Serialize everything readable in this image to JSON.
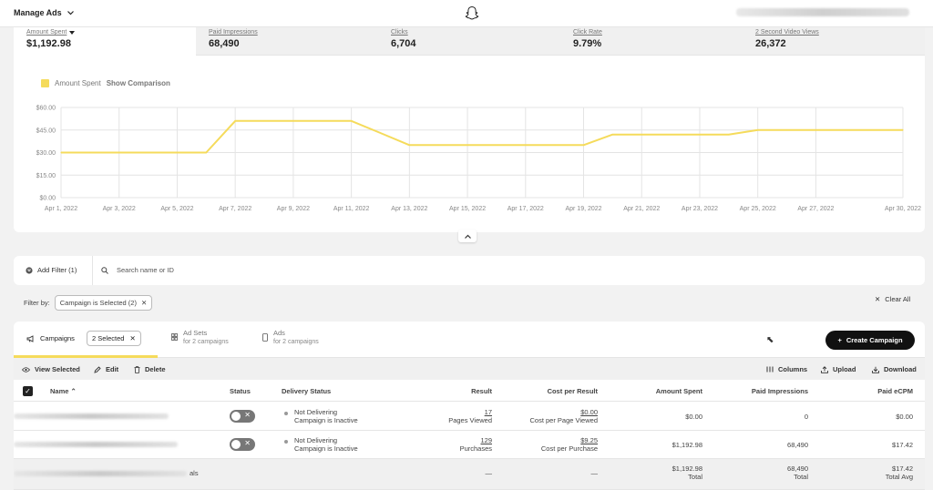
{
  "topbar": {
    "title": "Manage Ads"
  },
  "metrics": [
    {
      "label": "Amount Spent",
      "value": "$1,192.98"
    },
    {
      "label": "Paid Impressions",
      "value": "68,490"
    },
    {
      "label": "Clicks",
      "value": "6,704"
    },
    {
      "label": "Click Rate",
      "value": "9.79%"
    },
    {
      "label": "2 Second Video Views",
      "value": "26,372"
    }
  ],
  "legend": {
    "series": "Amount Spent",
    "compare": "Show Comparison"
  },
  "colors": {
    "series": "#f5db5b",
    "accent": "#111111"
  },
  "chart_data": {
    "type": "line",
    "title": "",
    "xlabel": "",
    "ylabel": "",
    "ylim": [
      0,
      60
    ],
    "yticks": [
      "$60.00",
      "$45.00",
      "$30.00",
      "$15.00",
      "$0.00"
    ],
    "xticks": [
      "Apr 1, 2022",
      "Apr 3, 2022",
      "Apr 5, 2022",
      "Apr 7, 2022",
      "Apr 9, 2022",
      "Apr 11, 2022",
      "Apr 13, 2022",
      "Apr 15, 2022",
      "Apr 17, 2022",
      "Apr 19, 2022",
      "Apr 21, 2022",
      "Apr 23, 2022",
      "Apr 25, 2022",
      "Apr 27, 2022",
      "Apr 30, 2022"
    ],
    "x": [
      "Apr 1, 2022",
      "Apr 2, 2022",
      "Apr 3, 2022",
      "Apr 4, 2022",
      "Apr 5, 2022",
      "Apr 6, 2022",
      "Apr 7, 2022",
      "Apr 8, 2022",
      "Apr 9, 2022",
      "Apr 10, 2022",
      "Apr 11, 2022",
      "Apr 12, 2022",
      "Apr 13, 2022",
      "Apr 14, 2022",
      "Apr 15, 2022",
      "Apr 16, 2022",
      "Apr 17, 2022",
      "Apr 18, 2022",
      "Apr 19, 2022",
      "Apr 20, 2022",
      "Apr 21, 2022",
      "Apr 22, 2022",
      "Apr 23, 2022",
      "Apr 24, 2022",
      "Apr 25, 2022",
      "Apr 26, 2022",
      "Apr 27, 2022",
      "Apr 28, 2022",
      "Apr 29, 2022",
      "Apr 30, 2022"
    ],
    "series": [
      {
        "values": [
          30,
          30,
          30,
          30,
          30,
          30,
          51,
          51,
          51,
          51,
          51,
          43,
          35,
          35,
          35,
          35,
          35,
          35,
          35,
          42,
          42,
          42,
          42,
          42,
          45,
          45,
          45,
          45,
          45,
          45
        ]
      }
    ],
    "grid": true,
    "legend": "top-left"
  },
  "filters": {
    "add_filter": "Add Filter (1)",
    "search_placeholder": "Search name or ID",
    "filter_by": "Filter by:",
    "chip": "Campaign is Selected (2)",
    "clear_all": "Clear All"
  },
  "tabs": {
    "campaigns": "Campaigns",
    "selected_chip": "2 Selected",
    "adsets_title": "Ad Sets",
    "adsets_sub": "for 2 campaigns",
    "ads_title": "Ads",
    "ads_sub": "for 2 campaigns",
    "create": "Create Campaign"
  },
  "actions": {
    "view": "View Selected",
    "edit": "Edit",
    "delete": "Delete",
    "columns": "Columns",
    "upload": "Upload",
    "download": "Download"
  },
  "table": {
    "headers": {
      "name": "Name",
      "status": "Status",
      "delivery": "Delivery Status",
      "result": "Result",
      "cpr": "Cost per Result",
      "spent": "Amount Spent",
      "impr": "Paid Impressions",
      "ecpm": "Paid eCPM"
    },
    "rows": [
      {
        "delivery1": "Not Delivering",
        "delivery2": "Campaign is Inactive",
        "result": "17",
        "result_sub": "Pages Viewed",
        "cpr": "$0.00",
        "cpr_sub": "Cost per Page Viewed",
        "spent": "$0.00",
        "impr": "0",
        "ecpm": "$0.00"
      },
      {
        "delivery1": "Not Delivering",
        "delivery2": "Campaign is Inactive",
        "result": "129",
        "result_sub": "Purchases",
        "cpr": "$9.25",
        "cpr_sub": "Cost per Purchase",
        "spent": "$1,192.98",
        "impr": "68,490",
        "ecpm": "$17.42"
      }
    ],
    "totals": {
      "name_tail": "als",
      "result": "—",
      "cpr": "—",
      "spent": "$1,192.98",
      "spent_sub": "Total",
      "impr": "68,490",
      "impr_sub": "Total",
      "ecpm": "$17.42",
      "ecpm_sub": "Total Avg"
    }
  }
}
